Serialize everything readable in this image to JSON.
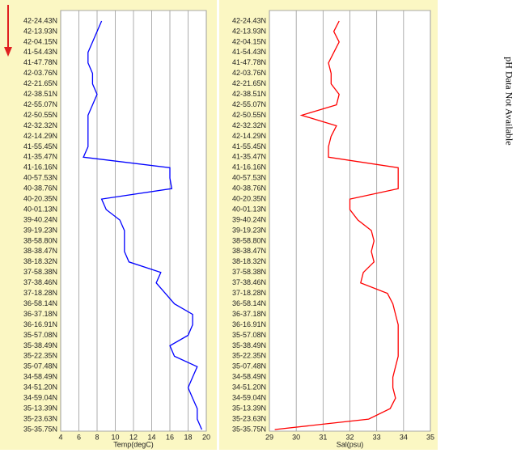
{
  "chart_data": [
    {
      "type": "line",
      "orientation": "horizontal",
      "xlabel": "Temp(degC)",
      "categories": [
        "42-24.43N",
        "42-13.93N",
        "42-04.15N",
        "41-54.43N",
        "41-47.78N",
        "42-03.76N",
        "42-21.65N",
        "42-38.51N",
        "42-55.07N",
        "42-50.55N",
        "42-32.32N",
        "42-14.29N",
        "41-55.45N",
        "41-35.47N",
        "41-16.16N",
        "40-57.53N",
        "40-38.76N",
        "40-20.35N",
        "40-01.13N",
        "39-40.24N",
        "39-19.23N",
        "38-58.80N",
        "38-38.47N",
        "38-18.32N",
        "37-58.38N",
        "37-38.46N",
        "37-18.28N",
        "36-58.14N",
        "36-37.18N",
        "36-16.91N",
        "35-57.08N",
        "35-38.49N",
        "35-22.35N",
        "35-07.48N",
        "34-58.49N",
        "34-51.20N",
        "34-59.04N",
        "35-13.39N",
        "35-23.63N",
        "35-35.75N"
      ],
      "values": [
        8.5,
        8.0,
        7.5,
        7.0,
        7.0,
        7.5,
        7.5,
        8.0,
        7.5,
        7.0,
        7.0,
        7.0,
        7.0,
        6.5,
        16.0,
        16.0,
        16.2,
        8.5,
        9.0,
        10.5,
        11.0,
        11.0,
        11.0,
        11.5,
        15.0,
        14.5,
        15.5,
        16.5,
        18.5,
        18.5,
        18.0,
        16.0,
        16.5,
        19.0,
        18.5,
        18.0,
        18.5,
        19.0,
        19.0,
        19.5
      ],
      "color": "#0000ff",
      "xlim": [
        4,
        20
      ],
      "xticks": [
        4,
        6,
        8,
        10,
        12,
        14,
        16,
        18,
        20
      ],
      "grid": true
    },
    {
      "type": "line",
      "orientation": "horizontal",
      "xlabel": "Sal(psu)",
      "categories": [
        "42-24.43N",
        "42-13.93N",
        "42-04.15N",
        "41-54.43N",
        "41-47.78N",
        "42-03.76N",
        "42-21.65N",
        "42-38.51N",
        "42-55.07N",
        "42-50.55N",
        "42-32.32N",
        "42-14.29N",
        "41-55.45N",
        "41-35.47N",
        "41-16.16N",
        "40-57.53N",
        "40-38.76N",
        "40-20.35N",
        "40-01.13N",
        "39-40.24N",
        "39-19.23N",
        "38-58.80N",
        "38-38.47N",
        "38-18.32N",
        "37-58.38N",
        "37-38.46N",
        "37-18.28N",
        "36-58.14N",
        "36-37.18N",
        "36-16.91N",
        "35-57.08N",
        "35-38.49N",
        "35-22.35N",
        "35-07.48N",
        "34-58.49N",
        "34-51.20N",
        "34-59.04N",
        "35-13.39N",
        "35-23.63N",
        "35-35.75N"
      ],
      "values": [
        31.6,
        31.4,
        31.6,
        31.4,
        31.2,
        31.3,
        31.3,
        31.6,
        31.5,
        30.2,
        31.5,
        31.3,
        31.2,
        31.2,
        33.8,
        33.8,
        33.8,
        32.0,
        32.0,
        32.3,
        32.8,
        32.9,
        32.8,
        32.9,
        32.5,
        32.4,
        33.4,
        33.6,
        33.7,
        33.8,
        33.8,
        33.8,
        33.8,
        33.7,
        33.6,
        33.6,
        33.7,
        33.5,
        32.7,
        29.2
      ],
      "color": "#ff0000",
      "xlim": [
        29,
        35
      ],
      "xticks": [
        29,
        30,
        31,
        32,
        33,
        34,
        35
      ],
      "grid": true
    }
  ],
  "note": "pH Data Not Available"
}
